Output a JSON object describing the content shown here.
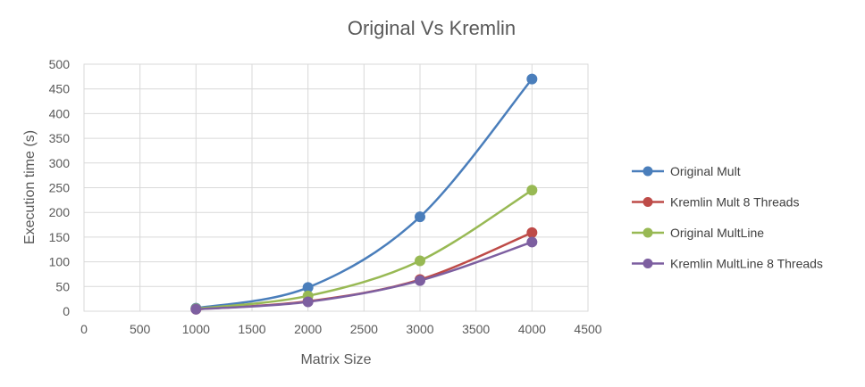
{
  "chart_data": {
    "type": "line",
    "title": "Original Vs Kremlin",
    "xlabel": "Matrix  Size",
    "ylabel": "Execution time (s)",
    "xlim": [
      0,
      4500
    ],
    "ylim": [
      0,
      500
    ],
    "x_ticks": [
      "0",
      "500",
      "1000",
      "1500",
      "2000",
      "2500",
      "3000",
      "3500",
      "4000",
      "4500"
    ],
    "y_ticks": [
      "0",
      "50",
      "100",
      "150",
      "200",
      "250",
      "300",
      "350",
      "400",
      "450",
      "500"
    ],
    "grid": true,
    "smooth": true,
    "legend_position": "right",
    "x": [
      1000,
      2000,
      3000,
      4000
    ],
    "series": [
      {
        "name": "Original Mult",
        "color": "#4a7ebb",
        "values": [
          6,
          48,
          191,
          470
        ]
      },
      {
        "name": "Kremlin Mult 8 Threads",
        "color": "#be4b48",
        "values": [
          4,
          20,
          64,
          159
        ]
      },
      {
        "name": "Original MultLine",
        "color": "#98b954",
        "values": [
          5,
          31,
          102,
          245
        ]
      },
      {
        "name": "Kremlin MultLine 8 Threads",
        "color": "#7d5fa0",
        "values": [
          4,
          19,
          62,
          140
        ]
      }
    ]
  }
}
